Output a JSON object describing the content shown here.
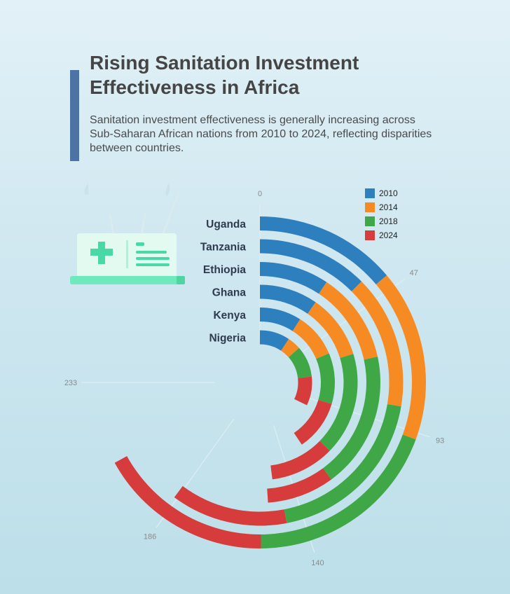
{
  "header": {
    "title": "Rising Sanitation Investment Effectiveness in Africa",
    "subtitle": "Sanitation investment effectiveness is generally increasing across Sub-Saharan African nations from 2010 to 2024, reflecting disparities between countries."
  },
  "colors": {
    "accent": "#4c73a3",
    "series": [
      "#2e7fbe",
      "#f68b24",
      "#3fa745",
      "#d63c3c"
    ]
  },
  "chart_data": {
    "type": "bar",
    "subtype": "radial-stacked",
    "categories": [
      "Uganda",
      "Tanzania",
      "Ethiopia",
      "Ghana",
      "Kenya",
      "Nigeria"
    ],
    "series": [
      {
        "name": "2010",
        "values": [
          43,
          39,
          29,
          30,
          28,
          29
        ]
      },
      {
        "name": "2014",
        "values": [
          52,
          47,
          38,
          33,
          30,
          13
        ]
      },
      {
        "name": "2018",
        "values": [
          60,
          60,
          57,
          53,
          34,
          30
        ]
      },
      {
        "name": "2024",
        "values": [
          53,
          41,
          28,
          33,
          34,
          28
        ]
      }
    ],
    "axis_ticks": [
      0,
      47,
      93,
      140,
      186,
      233
    ],
    "axis_max": 233,
    "legend_position": "top-right"
  }
}
